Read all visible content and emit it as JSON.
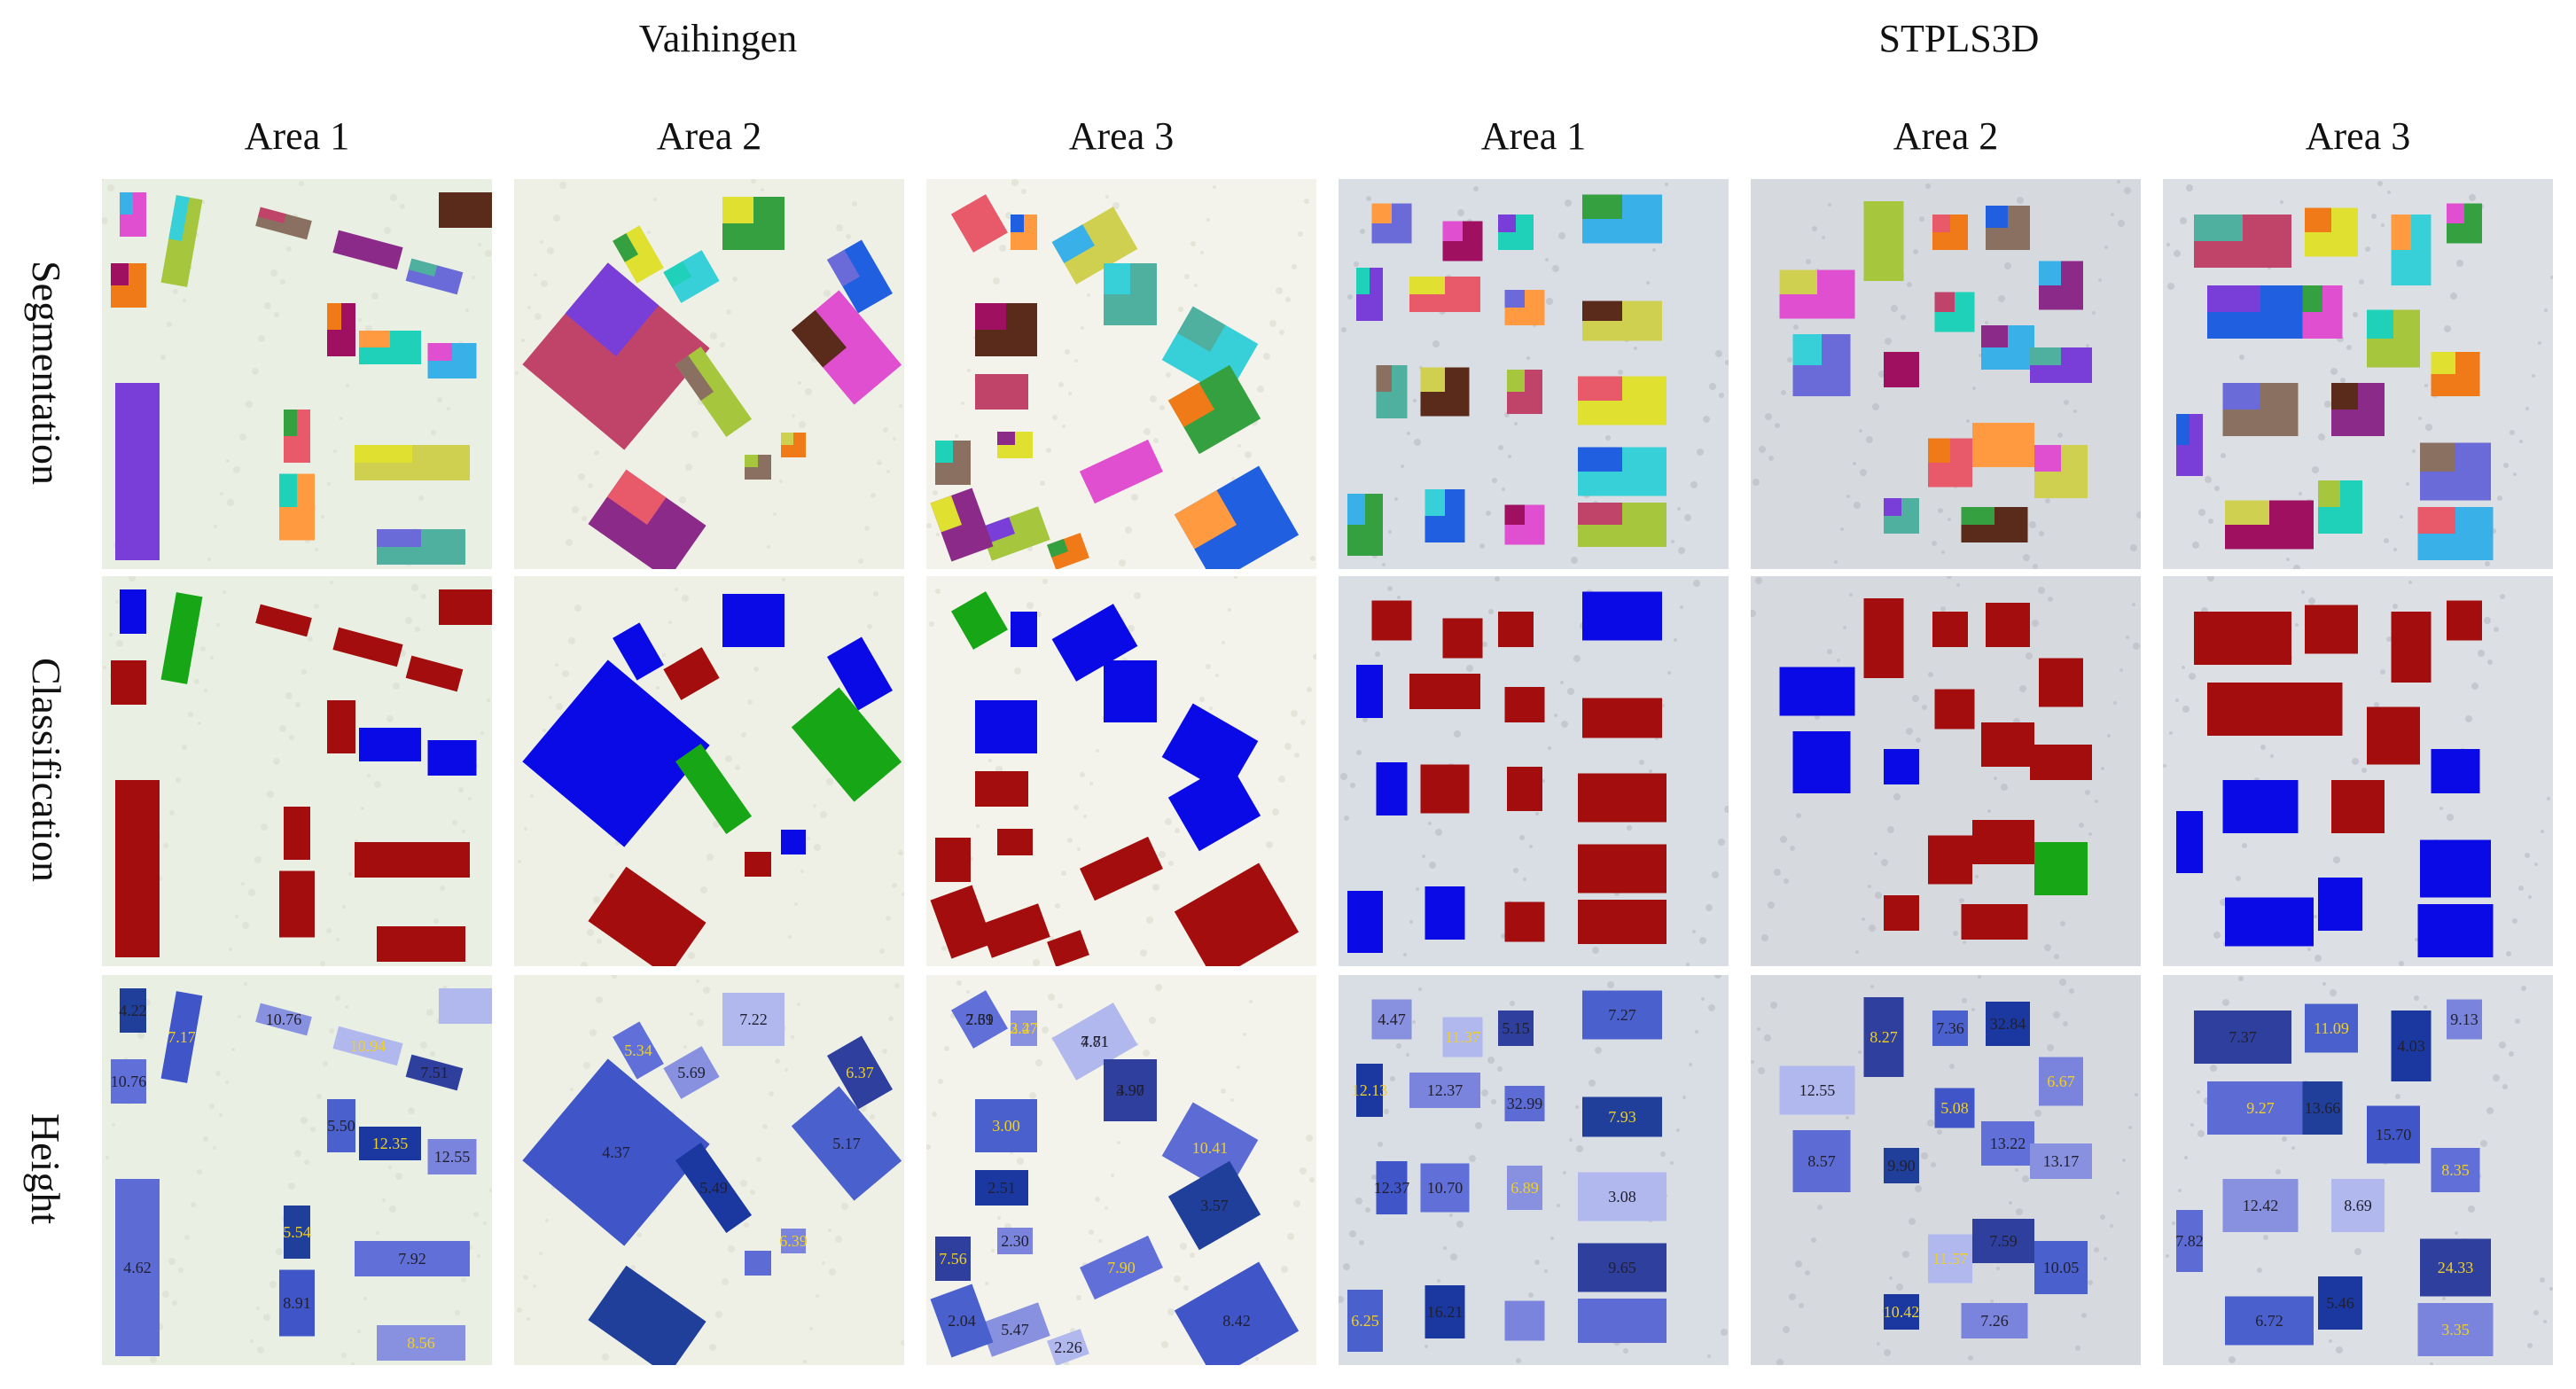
{
  "groups": [
    {
      "name": "Vaihingen",
      "areas": [
        "Area 1",
        "Area 2",
        "Area 3"
      ]
    },
    {
      "name": "STPLS3D",
      "areas": [
        "Area 1",
        "Area 2",
        "Area 3"
      ]
    }
  ],
  "rows": [
    "Segmentation",
    "Classification",
    "Height"
  ],
  "legend_colors": {
    "flat_roof": "#a30d0d",
    "pitched_roof": "#0a0ae6",
    "other_roof": "#16a616"
  },
  "height_labels": [
    [
      "4.22",
      "7.17",
      "10.76",
      "10.76",
      "10.94",
      "7.51",
      "5.50",
      "12.35",
      "12.55",
      "4.62",
      "5.54",
      "8.91",
      "7.92",
      "8.56"
    ],
    [
      "4.37",
      "5.34",
      "5.69",
      "7.22",
      "6.37",
      "5.17",
      "5.49",
      "6.39"
    ],
    [
      "7.39",
      "3.27",
      "4.71",
      "3.90",
      "3.00",
      "2.51",
      "2.30",
      "10.41",
      "3.57",
      "8.42",
      "7.90",
      "5.47",
      "2.26",
      "7.56",
      "2.04",
      "2.61",
      "2.47",
      "7.81",
      "4.97"
    ],
    [
      "4.47",
      "11.37",
      "5.15",
      "7.27",
      "12.13",
      "12.37",
      "32.99",
      "7.93",
      "12.37",
      "10.70",
      "6.89",
      "3.08",
      "9.65",
      "6.25",
      "16.21"
    ],
    [
      "12.55",
      "8.27",
      "7.36",
      "32.84",
      "6.67",
      "8.57",
      "9.90",
      "5.08",
      "13.22",
      "13.17",
      "11.57",
      "7.59",
      "10.05",
      "10.42",
      "7.26"
    ],
    [
      "7.37",
      "11.09",
      "4.03",
      "9.13",
      "9.27",
      "13.66",
      "15.70",
      "8.35",
      "12.42",
      "8.69",
      "24.33",
      "6.72",
      "5.46",
      "3.35",
      "7.82"
    ]
  ]
}
